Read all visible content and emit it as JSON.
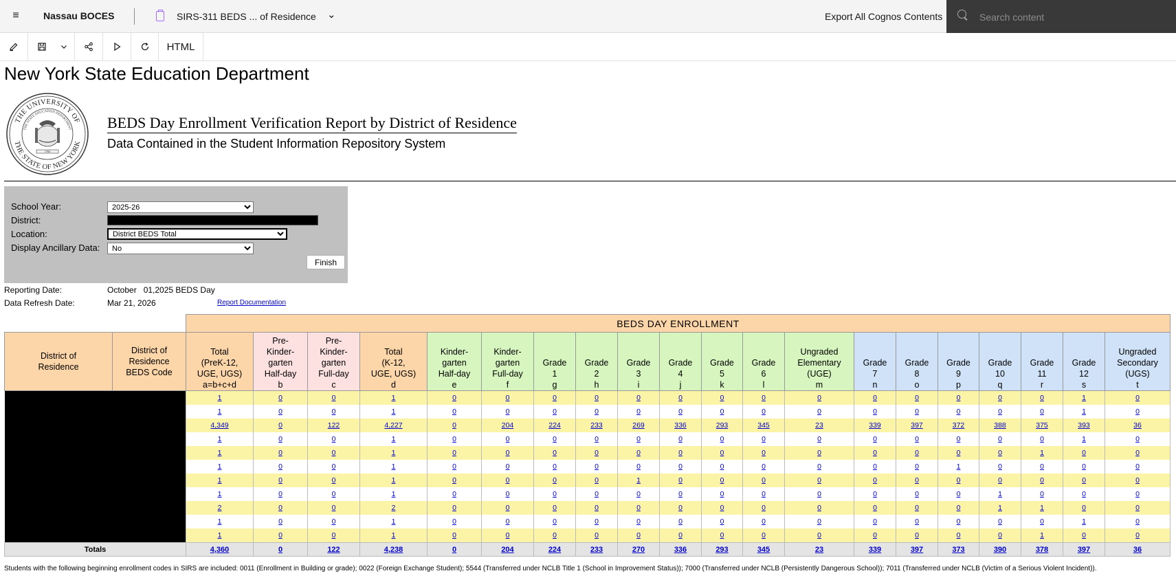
{
  "topbar": {
    "app_title": "Nassau BOCES",
    "report_title": "SIRS-311 BEDS ... of Residence",
    "export_label": "Export All Cognos Contents",
    "search_placeholder": "Search content"
  },
  "toolbar": {
    "html_label": "HTML"
  },
  "report": {
    "agency": "New York State Education Department",
    "title": "BEDS Day Enrollment Verification Report by District of Residence",
    "subtitle": "Data Contained in the Student Information Repository System",
    "seal_outer_text": "THE UNIVERSITY OF THE STATE OF NEW YORK",
    "seal_inner_text": "THE STATE EDUCATION DEPARTMENT",
    "seal_year": "1784"
  },
  "prompts": {
    "school_year_label": "School Year:",
    "school_year_value": "2025-26",
    "district_label": "District:",
    "location_label": "Location:",
    "location_value": "District BEDS Total",
    "ancillary_label": "Display Ancillary Data:",
    "ancillary_value": "No",
    "finish_label": "Finish"
  },
  "meta": {
    "reporting_date_label": "Reporting Date:",
    "reporting_date_value": "October   01,2025 BEDS Day",
    "refresh_date_label": "Data Refresh Date:",
    "refresh_date_value": "Mar 21, 2026",
    "doc_link": "Report Documentation"
  },
  "table": {
    "group_header": "BEDS  DAY  ENROLLMENT",
    "district_col": "District of\nResidence",
    "code_col": "District of\nResidence\nBEDS Code",
    "columns": [
      {
        "label": "Total\n(PreK-12,\nUGE, UGS)\na=b+c+d",
        "color": "peach"
      },
      {
        "label": "Pre-\nKinder-\ngarten\nHalf-day\nb",
        "color": "pink"
      },
      {
        "label": "Pre-\nKinder-\ngarten\nFull-day\nc",
        "color": "pink"
      },
      {
        "label": "Total\n(K-12,\nUGE, UGS)\nd",
        "color": "peach"
      },
      {
        "label": "Kinder-\ngarten\nHalf-day\ne",
        "color": "green"
      },
      {
        "label": "Kinder-\ngarten\nFull-day\nf",
        "color": "green"
      },
      {
        "label": "Grade\n1\ng",
        "color": "green"
      },
      {
        "label": "Grade\n2\nh",
        "color": "green"
      },
      {
        "label": "Grade\n3\ni",
        "color": "green"
      },
      {
        "label": "Grade\n4\nj",
        "color": "green"
      },
      {
        "label": "Grade\n5\nk",
        "color": "green"
      },
      {
        "label": "Grade\n6\nl",
        "color": "green"
      },
      {
        "label": "Ungraded\nElementary\n(UGE)\nm",
        "color": "green"
      },
      {
        "label": "Grade\n7\nn",
        "color": "blue"
      },
      {
        "label": "Grade\n8\no",
        "color": "blue"
      },
      {
        "label": "Grade\n9\np",
        "color": "blue"
      },
      {
        "label": "Grade\n10\nq",
        "color": "blue"
      },
      {
        "label": "Grade\n11\nr",
        "color": "blue"
      },
      {
        "label": "Grade\n12\ns",
        "color": "blue"
      },
      {
        "label": "Ungraded\nSecondary\n(UGS)\nt",
        "color": "blue"
      }
    ],
    "rows": [
      [
        "1",
        "0",
        "0",
        "1",
        "0",
        "0",
        "0",
        "0",
        "0",
        "0",
        "0",
        "0",
        "0",
        "0",
        "0",
        "0",
        "0",
        "0",
        "1",
        "0"
      ],
      [
        "1",
        "0",
        "0",
        "1",
        "0",
        "0",
        "0",
        "0",
        "0",
        "0",
        "0",
        "0",
        "0",
        "0",
        "0",
        "0",
        "0",
        "0",
        "1",
        "0"
      ],
      [
        "4,349",
        "0",
        "122",
        "4,227",
        "0",
        "204",
        "224",
        "233",
        "269",
        "336",
        "293",
        "345",
        "23",
        "339",
        "397",
        "372",
        "388",
        "375",
        "393",
        "36"
      ],
      [
        "1",
        "0",
        "0",
        "1",
        "0",
        "0",
        "0",
        "0",
        "0",
        "0",
        "0",
        "0",
        "0",
        "0",
        "0",
        "0",
        "0",
        "0",
        "1",
        "0"
      ],
      [
        "1",
        "0",
        "0",
        "1",
        "0",
        "0",
        "0",
        "0",
        "0",
        "0",
        "0",
        "0",
        "0",
        "0",
        "0",
        "0",
        "0",
        "1",
        "0",
        "0"
      ],
      [
        "1",
        "0",
        "0",
        "1",
        "0",
        "0",
        "0",
        "0",
        "0",
        "0",
        "0",
        "0",
        "0",
        "0",
        "0",
        "1",
        "0",
        "0",
        "0",
        "0"
      ],
      [
        "1",
        "0",
        "0",
        "1",
        "0",
        "0",
        "0",
        "0",
        "1",
        "0",
        "0",
        "0",
        "0",
        "0",
        "0",
        "0",
        "0",
        "0",
        "0",
        "0"
      ],
      [
        "1",
        "0",
        "0",
        "1",
        "0",
        "0",
        "0",
        "0",
        "0",
        "0",
        "0",
        "0",
        "0",
        "0",
        "0",
        "0",
        "1",
        "0",
        "0",
        "0"
      ],
      [
        "2",
        "0",
        "0",
        "2",
        "0",
        "0",
        "0",
        "0",
        "0",
        "0",
        "0",
        "0",
        "0",
        "0",
        "0",
        "0",
        "1",
        "1",
        "0",
        "0"
      ],
      [
        "1",
        "0",
        "0",
        "1",
        "0",
        "0",
        "0",
        "0",
        "0",
        "0",
        "0",
        "0",
        "0",
        "0",
        "0",
        "0",
        "0",
        "0",
        "1",
        "0"
      ],
      [
        "1",
        "0",
        "0",
        "1",
        "0",
        "0",
        "0",
        "0",
        "0",
        "0",
        "0",
        "0",
        "0",
        "0",
        "0",
        "0",
        "0",
        "1",
        "0",
        "0"
      ]
    ],
    "totals_label": "Totals",
    "totals": [
      "4,360",
      "0",
      "122",
      "4,238",
      "0",
      "204",
      "224",
      "233",
      "270",
      "336",
      "293",
      "345",
      "23",
      "339",
      "397",
      "373",
      "390",
      "378",
      "397",
      "36"
    ]
  },
  "footnote": "Students with the following beginning enrollment codes in SIRS are included: 0011 (Enrollment in Building or grade); 0022 (Foreign Exchange Student); 5544 (Transferred under NCLB Title 1 (School in Improvement Status)); 7000 (Transferred under NCLB (Persistently Dangerous School)); 7011 (Transferred under NCLB (Victim of a Serious Violent Incident))."
}
